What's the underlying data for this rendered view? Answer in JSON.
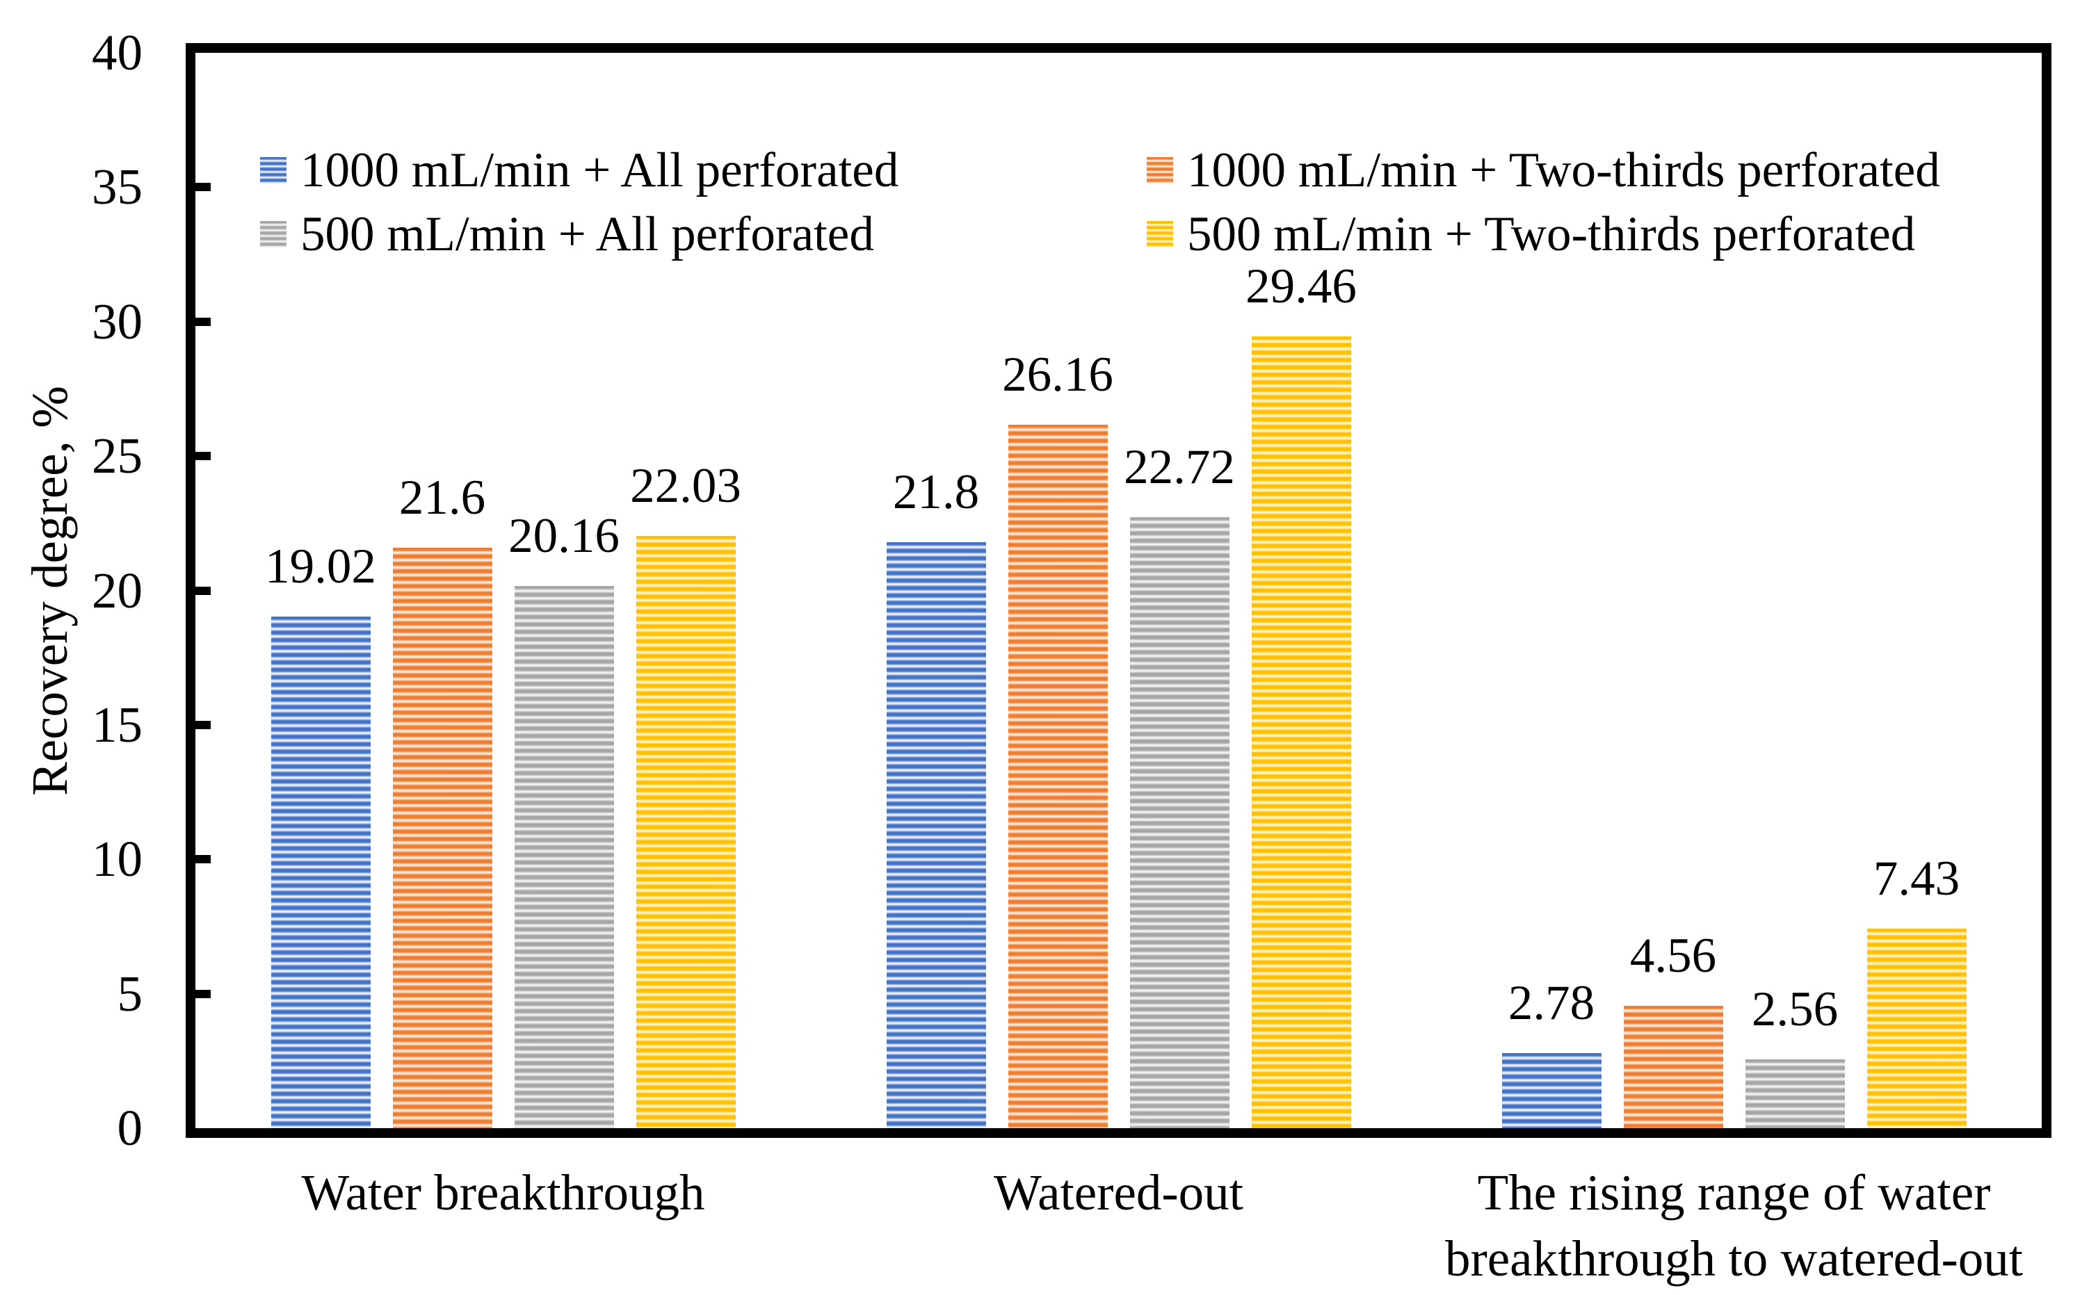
{
  "figure": {
    "background": "#ffffff",
    "border_color": "#000000"
  },
  "y_axis": {
    "title": "Recovery degree, %",
    "min": 0,
    "max": 40,
    "step": 5,
    "tick_labels": [
      "0",
      "5",
      "10",
      "15",
      "20",
      "25",
      "30",
      "35",
      "40"
    ]
  },
  "chart_data": {
    "type": "bar",
    "title": "",
    "xlabel": "",
    "ylabel": "Recovery degree, %",
    "ylim": [
      0,
      40
    ],
    "ytick_step": 5,
    "grid": false,
    "legend_position": "top-inside-two-columns",
    "bar_pattern": "horizontal-stripes",
    "categories": [
      "Water breakthrough",
      "Watered-out",
      "The rising range of water\nbreakthrough to watered-out"
    ],
    "series": [
      {
        "name": "1000 mL/min + All perforated",
        "color": "#4472C4",
        "light_color": "#EEF2FB",
        "values": [
          19.02,
          21.8,
          2.78
        ],
        "labels": [
          "19.02",
          "21.8",
          "2.78"
        ]
      },
      {
        "name": "1000 mL/min + Two-thirds perforated",
        "color": "#ED7D31",
        "light_color": "#FCEBDD",
        "values": [
          21.6,
          26.16,
          4.56
        ],
        "labels": [
          "21.6",
          "26.16",
          "4.56"
        ]
      },
      {
        "name": "500 mL/min + All perforated",
        "color": "#A6A6A6",
        "light_color": "#F2F2F2",
        "values": [
          20.16,
          22.72,
          2.56
        ],
        "labels": [
          "20.16",
          "22.72",
          "2.56"
        ]
      },
      {
        "name": "500 mL/min + Two-thirds perforated",
        "color": "#FFC000",
        "light_color": "#FFF4CE",
        "values": [
          22.03,
          29.46,
          7.43
        ],
        "labels": [
          "22.03",
          "29.46",
          "7.43"
        ]
      }
    ]
  }
}
